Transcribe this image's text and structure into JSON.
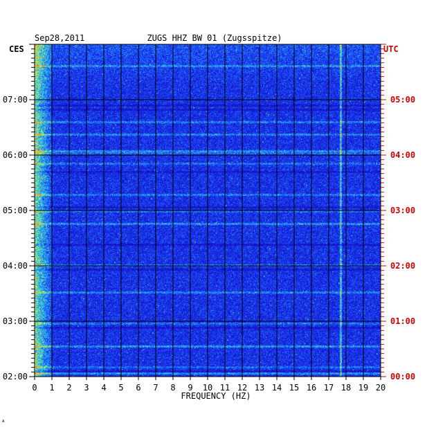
{
  "header": {
    "date": "Sep28,2011",
    "station": "ZUGS HHZ BW 01 (Zugsspitze)"
  },
  "footer_mark": "ᴬ",
  "colors": {
    "background": "#ffffff",
    "spectrogram_base": "#1a1ad8",
    "grid": "#000000",
    "left_text": "#000000",
    "right_text": "#cc0000"
  },
  "chart_data": {
    "type": "heatmap",
    "title": "ZUGS HHZ BW 01 (Zugsspitze)",
    "xlabel": "FREQUENCY (HZ)",
    "xlim": [
      0,
      20
    ],
    "x_ticks": [
      "0",
      "1",
      "2",
      "3",
      "4",
      "5",
      "6",
      "7",
      "8",
      "9",
      "10",
      "11",
      "12",
      "13",
      "14",
      "15",
      "16",
      "17",
      "18",
      "19",
      "20"
    ],
    "left_axis": {
      "label": "CES",
      "ticks": [
        {
          "label": "07:00",
          "hours_from_bottom": 5
        },
        {
          "label": "06:00",
          "hours_from_bottom": 4
        },
        {
          "label": "05:00",
          "hours_from_bottom": 3
        },
        {
          "label": "04:00",
          "hours_from_bottom": 2
        },
        {
          "label": "03:00",
          "hours_from_bottom": 1
        },
        {
          "label": "02:00",
          "hours_from_bottom": 0
        }
      ]
    },
    "right_axis": {
      "label": "UTC",
      "ticks": [
        {
          "label": "05:00",
          "hours_from_bottom": 5
        },
        {
          "label": "04:00",
          "hours_from_bottom": 4
        },
        {
          "label": "03:00",
          "hours_from_bottom": 3
        },
        {
          "label": "02:00",
          "hours_from_bottom": 2
        },
        {
          "label": "01:00",
          "hours_from_bottom": 1
        },
        {
          "label": "00:00",
          "hours_from_bottom": 0
        }
      ]
    },
    "time_span_hours": 6,
    "rows_per_hour": 12,
    "grid": true
  }
}
